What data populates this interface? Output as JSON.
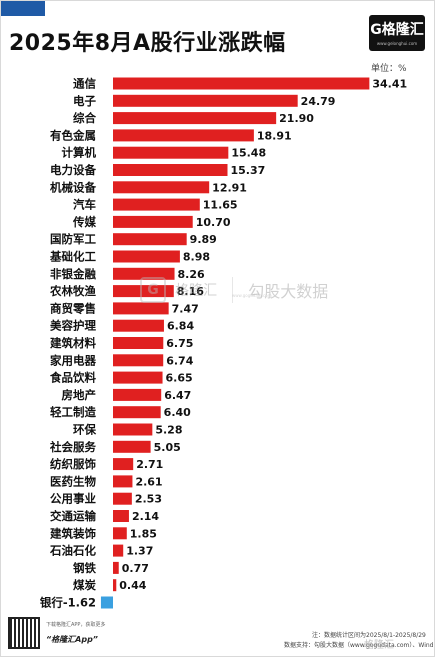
{
  "header": {
    "title": "2025年8月A股行业涨跌幅",
    "logo_text": "G格隆汇",
    "logo_sub": "www.gelonghui.com"
  },
  "unit_label": "单位：%",
  "colors": {
    "positive": "#e02020",
    "negative": "#3aa0e0",
    "accent": "#1f5aa6"
  },
  "chart_data": {
    "type": "bar",
    "orientation": "horizontal",
    "title": "2025年8月A股行业涨跌幅",
    "xlabel": "",
    "ylabel": "",
    "unit": "%",
    "categories": [
      "通信",
      "电子",
      "综合",
      "有色金属",
      "计算机",
      "电力设备",
      "机械设备",
      "汽车",
      "传媒",
      "国防军工",
      "基础化工",
      "非银金融",
      "农林牧渔",
      "商贸零售",
      "美容护理",
      "建筑材料",
      "家用电器",
      "食品饮料",
      "房地产",
      "轻工制造",
      "环保",
      "社会服务",
      "纺织服饰",
      "医药生物",
      "公用事业",
      "交通运输",
      "建筑装饰",
      "石油石化",
      "钢铁",
      "煤炭",
      "银行"
    ],
    "values": [
      34.41,
      24.79,
      21.9,
      18.91,
      15.48,
      15.37,
      12.91,
      11.65,
      10.7,
      9.89,
      8.98,
      8.26,
      8.16,
      7.47,
      6.84,
      6.75,
      6.74,
      6.65,
      6.47,
      6.4,
      5.28,
      5.05,
      2.71,
      2.61,
      2.53,
      2.14,
      1.85,
      1.37,
      0.77,
      0.44,
      -1.62
    ],
    "value_labels": [
      "34.41",
      "24.79",
      "21.90",
      "18.91",
      "15.48",
      "15.37",
      "12.91",
      "11.65",
      "10.70",
      "9.89",
      "8.98",
      "8.26",
      "8.16",
      "7.47",
      "6.84",
      "6.75",
      "6.74",
      "6.65",
      "6.47",
      "6.40",
      "5.28",
      "5.05",
      "2.71",
      "2.61",
      "2.53",
      "2.14",
      "1.85",
      "1.37",
      "0.77",
      "0.44",
      "-1.62"
    ],
    "grid": false,
    "legend": "none"
  },
  "watermark": {
    "brand": "格隆汇",
    "text": "勾股大数据",
    "sub": "www.gogudata.com",
    "corner": "格隆汇"
  },
  "footer": {
    "qr_note": "下载格隆汇APP，获取更多",
    "app_name": "“格隆汇App”",
    "note": "注：数据统计区间为2025/8/1-2025/8/29",
    "source": "数据支持：勾股大数据（www.gogudata.com）、Wind"
  }
}
